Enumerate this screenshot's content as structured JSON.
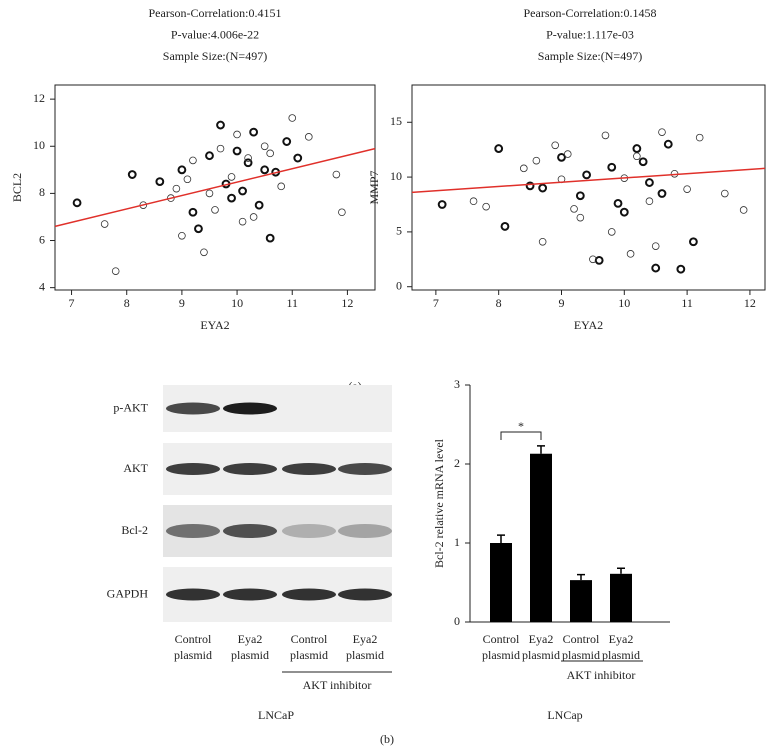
{
  "panel_labels": [
    "(a)",
    "(b)"
  ],
  "chart_data": [
    {
      "type": "scatter",
      "title_lines": [
        "Pearson-Correlation:0.4151",
        "P-value:4.006e-22",
        "Sample Size:(N=497)"
      ],
      "x_label": "EYA2",
      "y_label": "BCL2",
      "xlim": [
        6.7,
        12.5
      ],
      "ylim": [
        3.9,
        12.6
      ],
      "xticks": [
        7,
        8,
        9,
        10,
        11,
        12
      ],
      "yticks": [
        4,
        6,
        8,
        10,
        12
      ],
      "series": [
        {
          "color": "#111111",
          "line_width": 2,
          "x": [
            7.1,
            8.1,
            8.6,
            9.0,
            9.2,
            9.5,
            9.7,
            9.8,
            10.0,
            10.1,
            10.2,
            10.4,
            10.5,
            10.6,
            10.9,
            11.1,
            9.3,
            9.9,
            10.3,
            10.7
          ],
          "values": [
            7.6,
            8.8,
            8.5,
            9.0,
            7.2,
            9.6,
            10.9,
            8.4,
            9.8,
            8.1,
            9.3,
            7.5,
            9.0,
            6.1,
            10.2,
            9.5,
            6.5,
            7.8,
            10.6,
            8.9
          ]
        },
        {
          "color": "#333333",
          "line_width": 0.8,
          "x": [
            7.6,
            7.8,
            8.3,
            8.8,
            9.0,
            9.1,
            9.4,
            9.6,
            9.7,
            9.9,
            10.0,
            10.2,
            10.3,
            10.5,
            10.8,
            11.0,
            11.3,
            11.8,
            11.9,
            9.5,
            10.1,
            10.6,
            8.9,
            9.2
          ],
          "values": [
            6.7,
            4.7,
            7.5,
            7.8,
            6.2,
            8.6,
            5.5,
            7.3,
            9.9,
            8.7,
            10.5,
            9.5,
            7.0,
            10.0,
            8.3,
            11.2,
            10.4,
            8.8,
            7.2,
            8.0,
            6.8,
            9.7,
            8.2,
            9.4
          ]
        }
      ],
      "trend": {
        "color": "#e0302a",
        "x": [
          6.7,
          12.5
        ],
        "y": [
          6.6,
          9.9
        ]
      }
    },
    {
      "type": "scatter",
      "title_lines": [
        "Pearson-Correlation:0.1458",
        "P-value:1.117e-03",
        "Sample Size:(N=497)"
      ],
      "x_label": "EYA2",
      "y_label": "MMP7",
      "xlim": [
        6.62,
        12.24
      ],
      "ylim": [
        -0.3,
        18.4
      ],
      "xticks": [
        7,
        8,
        9,
        10,
        11,
        12
      ],
      "yticks": [
        0,
        5,
        10,
        15
      ],
      "series": [
        {
          "color": "#111111",
          "line_width": 2,
          "x": [
            7.1,
            8.0,
            8.1,
            8.5,
            9.0,
            9.3,
            9.6,
            9.8,
            10.0,
            10.2,
            10.4,
            10.5,
            10.7,
            10.9,
            11.1,
            9.4,
            9.9,
            10.3,
            8.7,
            10.6
          ],
          "values": [
            7.5,
            12.6,
            5.5,
            9.2,
            11.8,
            8.3,
            2.4,
            10.9,
            6.8,
            12.6,
            9.5,
            1.7,
            13.0,
            1.6,
            4.1,
            10.2,
            7.6,
            11.4,
            9.0,
            8.5
          ]
        },
        {
          "color": "#333333",
          "line_width": 0.8,
          "x": [
            7.6,
            7.8,
            8.4,
            8.7,
            8.9,
            9.0,
            9.2,
            9.5,
            9.7,
            9.8,
            10.1,
            10.2,
            10.4,
            10.6,
            10.8,
            11.0,
            11.2,
            11.6,
            11.9,
            9.3,
            10.0,
            8.6,
            9.1,
            10.5
          ],
          "values": [
            7.8,
            7.3,
            10.8,
            4.1,
            12.9,
            9.8,
            7.1,
            2.5,
            13.8,
            5.0,
            3.0,
            11.9,
            7.8,
            14.1,
            10.3,
            8.9,
            13.6,
            8.5,
            7.0,
            6.3,
            9.9,
            11.5,
            12.1,
            3.7
          ]
        }
      ],
      "trend": {
        "color": "#e0302a",
        "x": [
          6.62,
          12.24
        ],
        "y": [
          8.6,
          10.8
        ]
      }
    },
    {
      "type": "bar",
      "y_label": "Bcl-2 relative mRNA level",
      "x_label": "LNCap",
      "group_label": "AKT inhibitor",
      "annotation": "*",
      "categories": [
        [
          "Control",
          "plasmid"
        ],
        [
          "Eya2",
          "plasmid"
        ],
        [
          "Control",
          "plasmid"
        ],
        [
          "Eya2",
          "plasmid"
        ]
      ],
      "values": [
        1.0,
        2.13,
        0.53,
        0.61
      ],
      "errors": [
        0.1,
        0.1,
        0.07,
        0.07
      ],
      "color": "#000000",
      "ylim": [
        0,
        3
      ],
      "yticks": [
        0,
        1,
        2,
        3
      ]
    }
  ],
  "blot": {
    "rows": [
      "p-AKT",
      "AKT",
      "Bcl-2",
      "GAPDH"
    ],
    "lanes": [
      [
        "Control",
        "plasmid"
      ],
      [
        "Eya2",
        "plasmid"
      ],
      [
        "Control",
        "plasmid"
      ],
      [
        "Eya2",
        "plasmid"
      ]
    ],
    "group_label": "AKT inhibitor",
    "x_label": "LNCaP"
  }
}
